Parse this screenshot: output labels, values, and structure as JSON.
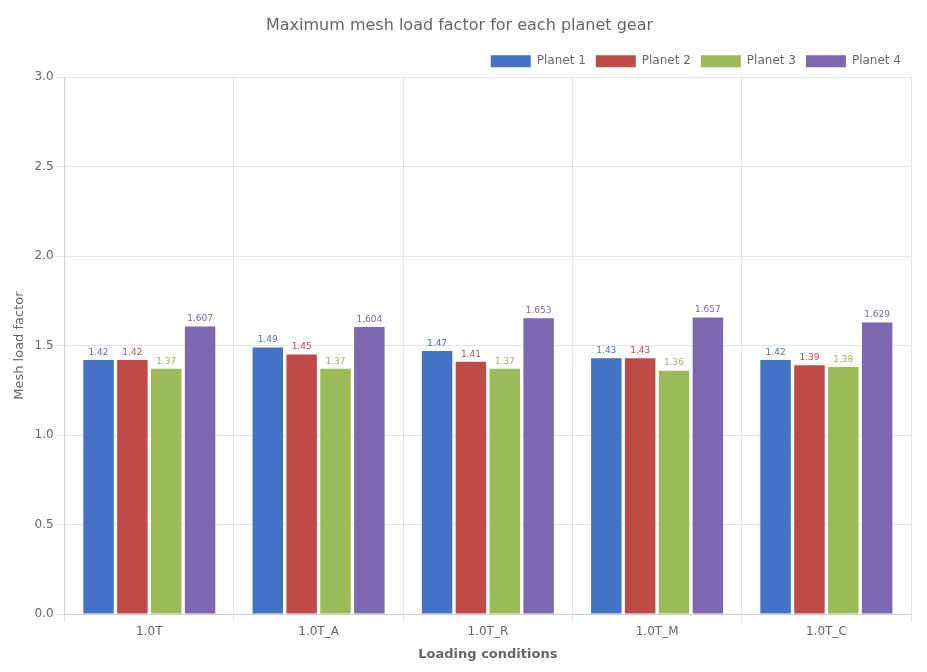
{
  "chart_data": {
    "type": "bar",
    "title": "Maximum mesh load factor for each planet gear",
    "xlabel": "Loading conditions",
    "ylabel": "Mesh load factor",
    "categories": [
      "1.0T",
      "1.0T_A",
      "1.0T_R",
      "1.0T_M",
      "1.0T_C"
    ],
    "series": [
      {
        "name": "Planet 1",
        "color": "#4472C4",
        "values": [
          1.42,
          1.49,
          1.47,
          1.43,
          1.42
        ]
      },
      {
        "name": "Planet 2",
        "color": "#BE4B48",
        "values": [
          1.42,
          1.45,
          1.41,
          1.43,
          1.39
        ]
      },
      {
        "name": "Planet 3",
        "color": "#9BBB59",
        "values": [
          1.37,
          1.37,
          1.37,
          1.36,
          1.38
        ]
      },
      {
        "name": "Planet 4",
        "color": "#7B68B0",
        "values": [
          1.607,
          1.604,
          1.653,
          1.657,
          1.629
        ]
      }
    ],
    "ylim": [
      0,
      3
    ],
    "yticks": [
      {
        "value": 0,
        "label": "0.0"
      },
      0.5,
      {
        "value": 1,
        "label": "1.0"
      },
      1.5,
      {
        "value": 2,
        "label": "2.0"
      },
      2.5,
      {
        "value": 3,
        "label": "3.0"
      }
    ],
    "grid": true,
    "legend": "upper right",
    "data_labels": true
  }
}
